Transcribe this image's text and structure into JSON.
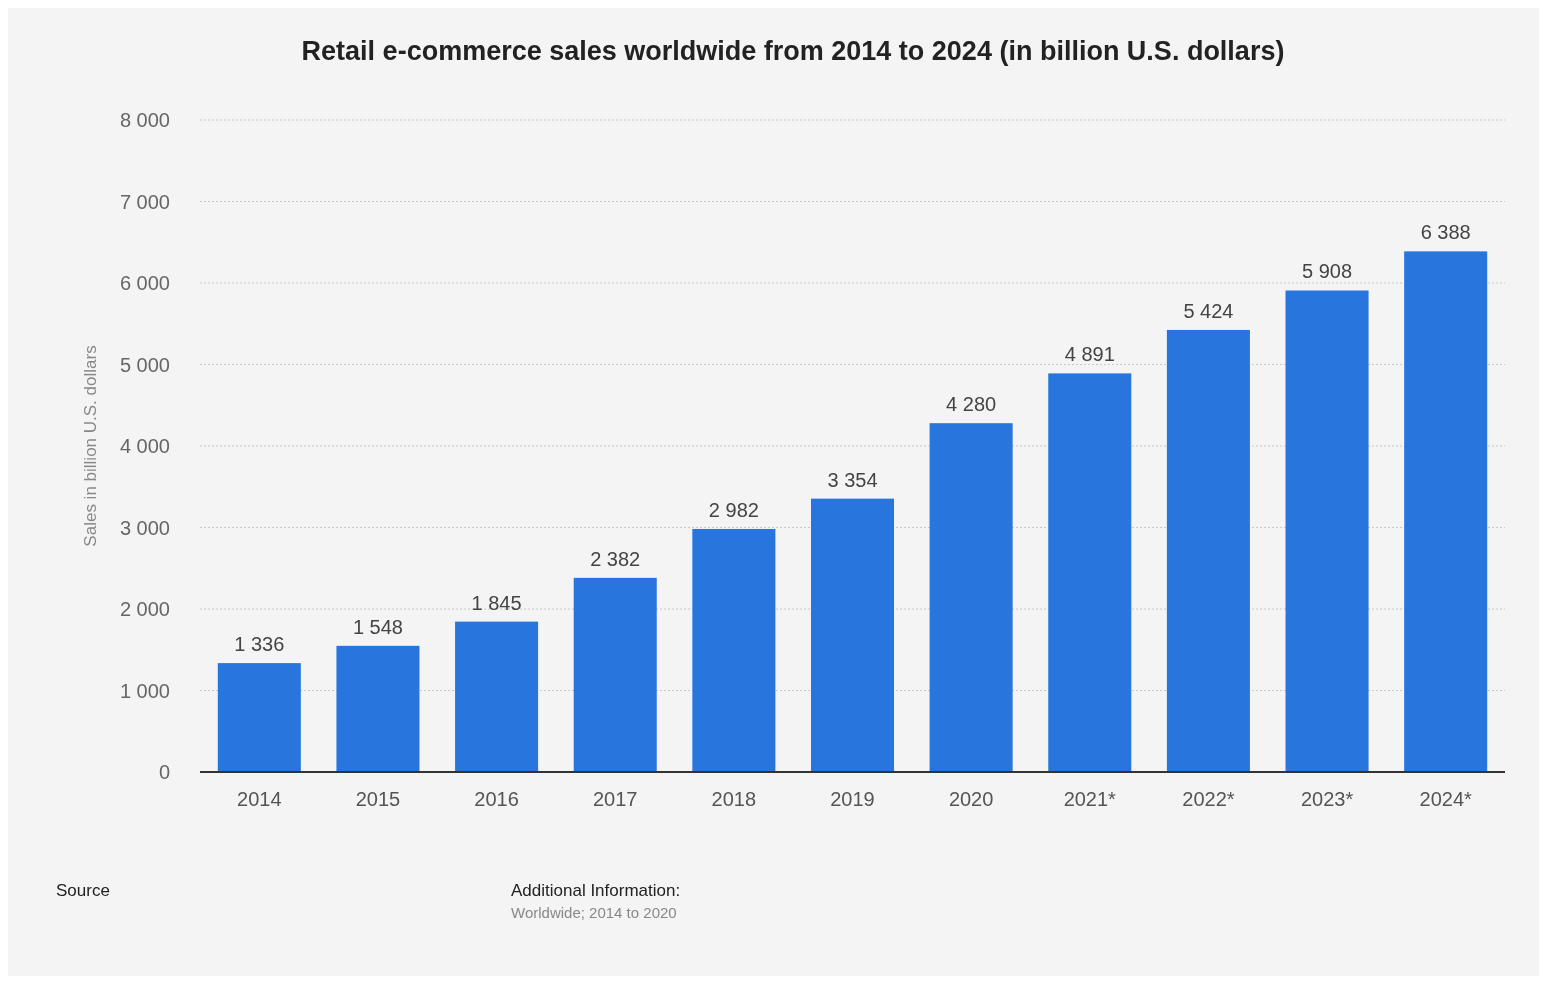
{
  "chart_data": {
    "type": "bar",
    "title": "Retail e-commerce sales worldwide from 2014 to 2024 (in billion U.S. dollars)",
    "ylabel": "Sales in billion U.S. dollars",
    "categories": [
      "2014",
      "2015",
      "2016",
      "2017",
      "2018",
      "2019",
      "2020",
      "2021*",
      "2022*",
      "2023*",
      "2024*"
    ],
    "values": [
      1336,
      1548,
      1845,
      2382,
      2982,
      3354,
      4280,
      4891,
      5424,
      5908,
      6388
    ],
    "value_labels": [
      "1 336",
      "1 548",
      "1 845",
      "2 382",
      "2 982",
      "3 354",
      "4 280",
      "4 891",
      "5 424",
      "5 908",
      "6 388"
    ],
    "color": "#2876dd",
    "ylim": [
      0,
      8000
    ],
    "yticks": [
      {
        "value": 0,
        "label": "0"
      },
      {
        "value": 1000,
        "label": "1 000"
      },
      {
        "value": 2000,
        "label": "2 000"
      },
      {
        "value": 3000,
        "label": "3 000"
      },
      {
        "value": 4000,
        "label": "4 000"
      },
      {
        "value": 5000,
        "label": "5 000"
      },
      {
        "value": 6000,
        "label": "6 000"
      },
      {
        "value": 7000,
        "label": "7 000"
      },
      {
        "value": 8000,
        "label": "8 000"
      }
    ],
    "grid": "y",
    "annotations": [
      "Source",
      "Additional Information:",
      "Worldwide; 2014 to 2020"
    ]
  }
}
